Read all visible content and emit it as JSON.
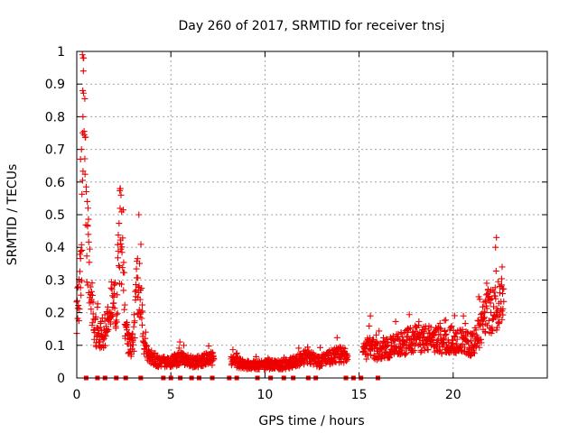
{
  "chart_data": {
    "type": "scatter",
    "title": "Day 260 of 2017, SRMTID for receiver tnsj",
    "xlabel": "GPS time / hours",
    "ylabel": "SRMTID / TECUs",
    "xlim": [
      0,
      25
    ],
    "ylim": [
      0,
      1
    ],
    "xticks": [
      "0",
      "5",
      "10",
      "15",
      "20"
    ],
    "yticks": [
      "0",
      "0.1",
      "0.2",
      "0.3",
      "0.4",
      "0.5",
      "0.6",
      "0.7",
      "0.8",
      "0.9",
      "1"
    ],
    "grid": true,
    "marker": "plus",
    "color": "#ee0000",
    "series": [
      {
        "name": "SRMTID",
        "profile_hours": [
          0.0,
          0.2,
          0.3,
          0.4,
          0.5,
          0.7,
          0.9,
          1.2,
          1.5,
          1.8,
          2.1,
          2.3,
          2.4,
          2.6,
          2.8,
          3.0,
          3.2,
          3.4,
          3.6,
          3.9,
          4.3,
          5.0,
          5.5,
          6.0,
          6.5,
          7.0,
          8.3,
          9.0,
          9.5,
          10.0,
          10.5,
          11.0,
          11.5,
          12.0,
          12.3,
          12.8,
          13.3,
          13.8,
          14.2,
          15.3,
          15.6,
          16.0,
          16.5,
          17.0,
          17.5,
          18.0,
          18.5,
          19.0,
          19.5,
          20.0,
          20.5,
          21.0,
          21.5,
          21.8,
          22.0,
          22.3,
          22.6
        ],
        "profile_center": [
          0.2,
          0.3,
          0.6,
          0.68,
          0.45,
          0.3,
          0.15,
          0.12,
          0.15,
          0.2,
          0.22,
          0.45,
          0.38,
          0.15,
          0.1,
          0.1,
          0.3,
          0.25,
          0.1,
          0.06,
          0.05,
          0.05,
          0.06,
          0.05,
          0.05,
          0.06,
          0.05,
          0.04,
          0.04,
          0.04,
          0.04,
          0.04,
          0.05,
          0.06,
          0.07,
          0.05,
          0.06,
          0.07,
          0.07,
          0.08,
          0.1,
          0.08,
          0.09,
          0.1,
          0.11,
          0.12,
          0.12,
          0.12,
          0.11,
          0.12,
          0.11,
          0.1,
          0.15,
          0.22,
          0.2,
          0.22,
          0.25
        ],
        "peaks": [
          {
            "x": 0.3,
            "y": 0.99
          },
          {
            "x": 0.35,
            "y": 0.94
          },
          {
            "x": 0.32,
            "y": 0.88
          },
          {
            "x": 0.33,
            "y": 0.8
          },
          {
            "x": 0.25,
            "y": 0.7
          },
          {
            "x": 0.2,
            "y": 0.67
          },
          {
            "x": 2.3,
            "y": 0.58
          },
          {
            "x": 2.35,
            "y": 0.56
          },
          {
            "x": 3.3,
            "y": 0.5
          },
          {
            "x": 0.6,
            "y": 0.52
          },
          {
            "x": 22.3,
            "y": 0.43
          },
          {
            "x": 22.25,
            "y": 0.4
          },
          {
            "x": 15.6,
            "y": 0.19
          },
          {
            "x": 22.6,
            "y": 0.34
          }
        ],
        "zero_hours": [
          0.5,
          1.1,
          1.5,
          2.1,
          2.6,
          3.4,
          4.6,
          5.0,
          5.5,
          6.1,
          6.5,
          7.2,
          8.1,
          8.5,
          9.6,
          10.3,
          11.0,
          11.5,
          12.3,
          12.7,
          14.3,
          14.7,
          15.1,
          16.0
        ]
      }
    ]
  }
}
